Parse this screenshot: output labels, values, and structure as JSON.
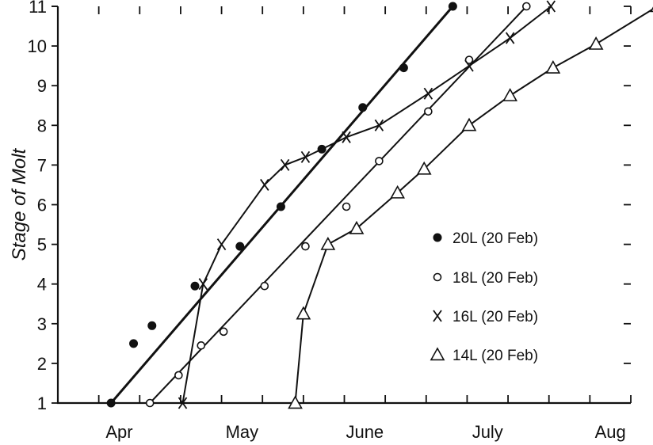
{
  "chart_data": {
    "type": "line",
    "title": "",
    "xlabel": "",
    "ylabel": "Stage of Molt",
    "x_tick_labels": [
      "Apr",
      "May",
      "June",
      "July",
      "Aug"
    ],
    "y_ticks": [
      1,
      2,
      3,
      4,
      5,
      6,
      7,
      8,
      9,
      10,
      11
    ],
    "xlim": [
      0,
      14
    ],
    "ylim": [
      1,
      11
    ],
    "legend_position": "right",
    "grid": false,
    "series": [
      {
        "name": "20L (20 Feb)",
        "marker": "dot",
        "points": [
          [
            1.3,
            1.0
          ],
          [
            1.85,
            2.5
          ],
          [
            2.3,
            2.95
          ],
          [
            3.35,
            3.95
          ],
          [
            4.45,
            4.95
          ],
          [
            5.45,
            5.95
          ],
          [
            6.45,
            7.4
          ],
          [
            7.45,
            8.45
          ],
          [
            8.45,
            9.45
          ],
          [
            9.65,
            11.0
          ]
        ],
        "fit": [
          [
            1.3,
            1.0
          ],
          [
            9.65,
            11.0
          ]
        ]
      },
      {
        "name": "18L (20 Feb)",
        "marker": "circle",
        "points": [
          [
            2.25,
            1.0
          ],
          [
            2.95,
            1.7
          ],
          [
            3.5,
            2.45
          ],
          [
            4.05,
            2.8
          ],
          [
            5.05,
            3.95
          ],
          [
            6.05,
            4.95
          ],
          [
            7.05,
            5.95
          ],
          [
            7.85,
            7.1
          ],
          [
            9.05,
            8.35
          ],
          [
            10.05,
            9.65
          ],
          [
            11.45,
            11.0
          ]
        ],
        "fit": [
          [
            2.25,
            1.0
          ],
          [
            11.45,
            11.0
          ]
        ]
      },
      {
        "name": "16L (20 Feb)",
        "marker": "x",
        "points": [
          [
            3.05,
            1.0
          ],
          [
            3.55,
            4.0
          ],
          [
            4.0,
            5.0
          ],
          [
            5.05,
            6.5
          ],
          [
            5.55,
            7.0
          ],
          [
            6.05,
            7.2
          ],
          [
            7.05,
            7.7
          ],
          [
            7.85,
            8.0
          ],
          [
            9.05,
            8.8
          ],
          [
            10.05,
            9.5
          ],
          [
            11.05,
            10.2
          ],
          [
            12.05,
            11.0
          ]
        ]
      },
      {
        "name": "14L (20 Feb)",
        "marker": "triangle",
        "points": [
          [
            5.8,
            1.0
          ],
          [
            6.0,
            3.25
          ],
          [
            6.6,
            5.0
          ],
          [
            7.3,
            5.4
          ],
          [
            8.3,
            6.3
          ],
          [
            8.95,
            6.9
          ],
          [
            10.05,
            8.0
          ],
          [
            11.05,
            8.75
          ],
          [
            12.1,
            9.45
          ],
          [
            13.15,
            10.05
          ],
          [
            14.65,
            11.0
          ]
        ]
      }
    ]
  }
}
